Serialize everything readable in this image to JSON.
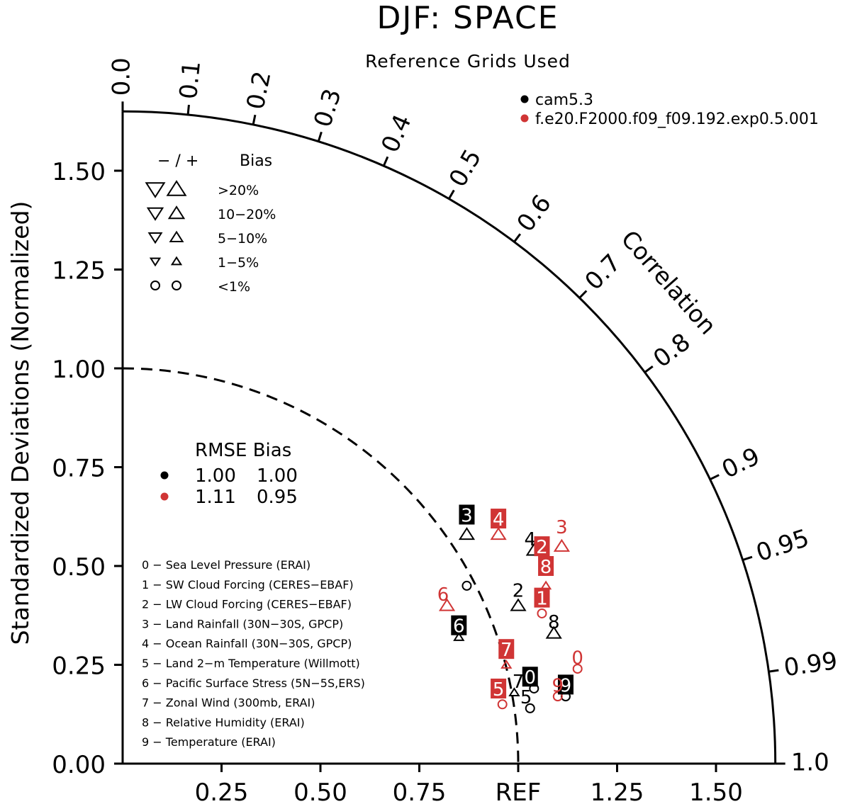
{
  "chart_data": {
    "type": "scatter",
    "subtype": "taylor-diagram",
    "title": "DJF: SPACE",
    "subtitle": "Reference Grids Used",
    "ylabel": "Standardized Deviations (Normalized)",
    "angular_label": "Correlation",
    "ref_label": "REF",
    "xlim": [
      0,
      1.65
    ],
    "ylim": [
      0,
      1.65
    ],
    "y_ticks": [
      "0.00",
      "0.25",
      "0.50",
      "0.75",
      "1.00",
      "1.25",
      "1.50"
    ],
    "x_ticks": [
      "0.25",
      "0.50",
      "0.75",
      "REF",
      "1.25",
      "1.50"
    ],
    "correlation_ticks": [
      "0.0",
      "0.1",
      "0.2",
      "0.3",
      "0.4",
      "0.5",
      "0.6",
      "0.7",
      "0.8",
      "0.9",
      "0.95",
      "0.99",
      "1.0"
    ],
    "grid": false,
    "legend_position": "top-right",
    "series": [
      {
        "name": "cam5.3",
        "color": "#000000",
        "points": [
          {
            "id": "0",
            "x": 1.03,
            "y": 0.22,
            "boxed": true
          },
          {
            "id": "2",
            "x": 1.0,
            "y": 0.44,
            "boxed": false
          },
          {
            "id": "3",
            "x": 0.87,
            "y": 0.63,
            "boxed": true
          },
          {
            "id": "4",
            "x": 1.03,
            "y": 0.57,
            "boxed": false
          },
          {
            "id": "5",
            "x": 1.02,
            "y": 0.17,
            "boxed": false
          },
          {
            "id": "6",
            "x": 0.85,
            "y": 0.35,
            "boxed": true
          },
          {
            "id": "7",
            "x": 1.0,
            "y": 0.21,
            "boxed": false
          },
          {
            "id": "8",
            "x": 1.09,
            "y": 0.36,
            "boxed": false
          },
          {
            "id": "9",
            "x": 1.12,
            "y": 0.2,
            "boxed": true
          }
        ]
      },
      {
        "name": "f.e20.F2000.f09_f09.192.exp0.5.001",
        "color": "#d03535",
        "points": [
          {
            "id": "0",
            "x": 1.15,
            "y": 0.27,
            "boxed": false
          },
          {
            "id": "1",
            "x": 1.06,
            "y": 0.42,
            "boxed": true
          },
          {
            "id": "2",
            "x": 1.06,
            "y": 0.55,
            "boxed": true
          },
          {
            "id": "3",
            "x": 1.11,
            "y": 0.6,
            "boxed": false
          },
          {
            "id": "4",
            "x": 0.95,
            "y": 0.62,
            "boxed": true
          },
          {
            "id": "5",
            "x": 0.95,
            "y": 0.19,
            "boxed": true
          },
          {
            "id": "6",
            "x": 0.81,
            "y": 0.43,
            "boxed": false
          },
          {
            "id": "7",
            "x": 0.97,
            "y": 0.29,
            "boxed": true
          },
          {
            "id": "8",
            "x": 1.07,
            "y": 0.5,
            "boxed": true
          },
          {
            "id": "9",
            "x": 1.1,
            "y": 0.2,
            "boxed": false
          }
        ]
      }
    ],
    "bias_markers": {
      "black": [
        {
          "x": 0.87,
          "y": 0.58,
          "shape": "up"
        },
        {
          "x": 1.04,
          "y": 0.54,
          "shape": "up"
        },
        {
          "x": 1.0,
          "y": 0.4,
          "shape": "up"
        },
        {
          "x": 1.09,
          "y": 0.33,
          "shape": "up"
        },
        {
          "x": 0.85,
          "y": 0.32,
          "shape": "up-small"
        },
        {
          "x": 0.87,
          "y": 0.45,
          "shape": "circle"
        },
        {
          "x": 1.04,
          "y": 0.19,
          "shape": "circle"
        },
        {
          "x": 1.03,
          "y": 0.14,
          "shape": "circle"
        },
        {
          "x": 1.12,
          "y": 0.17,
          "shape": "circle"
        },
        {
          "x": 0.99,
          "y": 0.18,
          "shape": "up-small"
        }
      ],
      "red": [
        {
          "x": 0.95,
          "y": 0.58,
          "shape": "up"
        },
        {
          "x": 1.11,
          "y": 0.55,
          "shape": "up"
        },
        {
          "x": 0.82,
          "y": 0.4,
          "shape": "up"
        },
        {
          "x": 1.07,
          "y": 0.45,
          "shape": "up-small"
        },
        {
          "x": 0.97,
          "y": 0.25,
          "shape": "up-small"
        },
        {
          "x": 1.06,
          "y": 0.38,
          "shape": "circle"
        },
        {
          "x": 1.15,
          "y": 0.24,
          "shape": "circle"
        },
        {
          "x": 0.96,
          "y": 0.15,
          "shape": "circle"
        },
        {
          "x": 1.1,
          "y": 0.17,
          "shape": "circle"
        }
      ]
    },
    "bias_legend": {
      "header_signs": "− / +",
      "header_label": "Bias",
      "rows": [
        {
          "label": ">20%",
          "shape": "triangle",
          "size": "xl"
        },
        {
          "label": "10−20%",
          "shape": "triangle",
          "size": "l"
        },
        {
          "label": "5−10%",
          "shape": "triangle",
          "size": "m"
        },
        {
          "label": "1−5%",
          "shape": "triangle",
          "size": "s"
        },
        {
          "label": "<1%",
          "shape": "circle",
          "size": "m"
        }
      ]
    },
    "rmse_table": {
      "header": "RMSE Bias",
      "rows": [
        {
          "rmse": "1.00",
          "bias": "1.00",
          "color": "#000000"
        },
        {
          "rmse": "1.11",
          "bias": "0.95",
          "color": "#d03535"
        }
      ]
    },
    "variables": [
      "0 − Sea Level Pressure (ERAI)",
      "1 − SW Cloud Forcing (CERES−EBAF)",
      "2 − LW Cloud Forcing (CERES−EBAF)",
      "3 − Land Rainfall (30N−30S, GPCP)",
      "4 − Ocean Rainfall (30N−30S, GPCP)",
      "5 − Land 2−m Temperature (Willmott)",
      "6 − Pacific Surface Stress (5N−5S,ERS)",
      "7 − Zonal Wind (300mb, ERAI)",
      "8 − Relative Humidity (ERAI)",
      "9 − Temperature (ERAI)"
    ]
  }
}
